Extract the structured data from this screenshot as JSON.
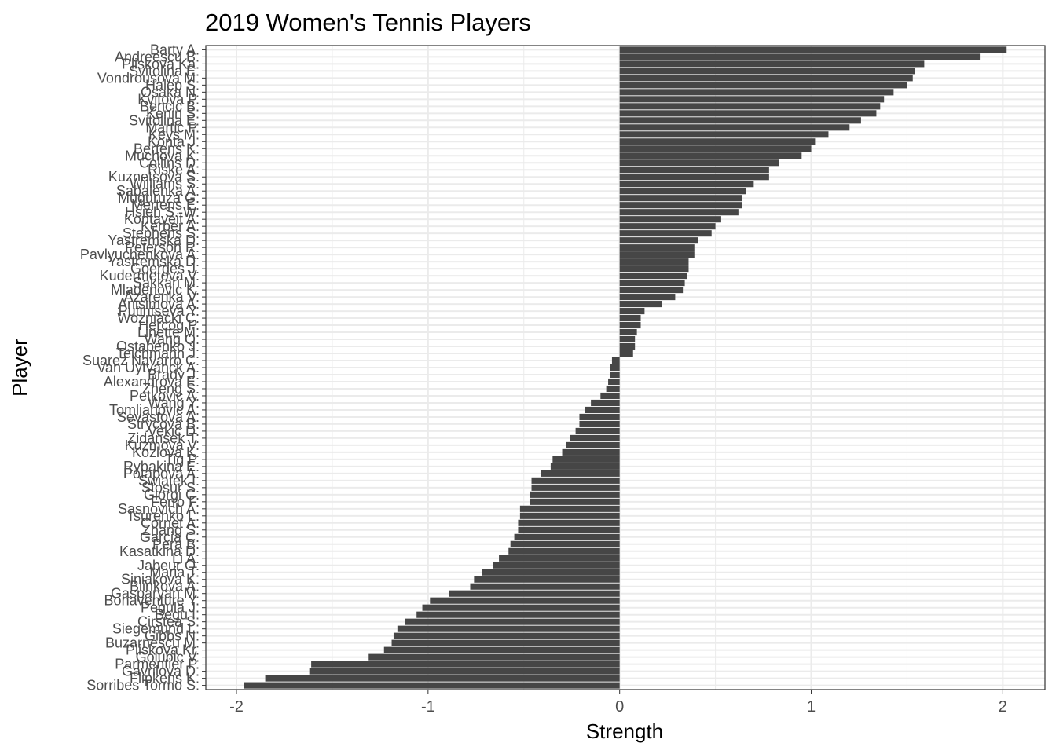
{
  "chart_data": {
    "type": "bar",
    "orientation": "horizontal",
    "title": "2019 Women's Tennis Players",
    "xlabel": "Strength",
    "ylabel": "Player",
    "xlim": [
      -2.16,
      2.22
    ],
    "x_ticks": [
      -2,
      -1,
      0,
      1,
      2
    ],
    "x_tick_labels": [
      "-2",
      "-1",
      "0",
      "1",
      "2"
    ],
    "grid": true,
    "colors": {
      "bar": "#464646",
      "grid": "#ebebeb",
      "panel_border": "#333333",
      "tick_label": "#4d4d4d",
      "background": "#ffffff"
    },
    "categories": [
      "Barty A.",
      "Andreescu B.",
      "Pliskova Ka.",
      "Svitolina E.",
      "Vondrousova M.",
      "Halep S.",
      "Osaka N.",
      "Kvitova P.",
      "Bencic B.",
      "Kenin S.",
      "Svitolina E.",
      "Martic P.",
      "Keys M.",
      "Konta J.",
      "Bertens K.",
      "Muchova K.",
      "Collins D.",
      "Riske A.",
      "Kuznetsova S.",
      "Williams S.",
      "Sabalenka A.",
      "Muguruza G.",
      "Mertens E.",
      "Hsieh S.-W.",
      "Kontaveit A.",
      "Kerber A.",
      "Stephens S.",
      "Yastremska D.",
      "Peterson R.",
      "Pavlyuchenkova A.",
      "Yastremska D.",
      "Goerges J.",
      "Kudermetova V.",
      "Sakkari M.",
      "Mladenovic K.",
      "Azarenka V.",
      "Anisimova A.",
      "Putintseva Y.",
      "Wozniacki C.",
      "Hercog P.",
      "Linette M.",
      "Wang Q.",
      "Ostapenko J.",
      "Teichmann J.",
      "Suarez Navarro C.",
      "Van Uytvanck A.",
      "Brady J.",
      "Alexandrova E.",
      "Zheng S.",
      "Petkovic A.",
      "Wang Y.",
      "Tomljanovic A.",
      "Sevastova A.",
      "Strycova B.",
      "Vekic D.",
      "Zidansek T.",
      "Kuzmova V.",
      "Kozlova K.",
      "Tig P.",
      "Rybakina E.",
      "Potapova A.",
      "Swiatek I.",
      "Stosur S.",
      "Giorgi C.",
      "Ferro F.",
      "Sasnovich A.",
      "Tsurenko L.",
      "Cornet A.",
      "Zhang S.",
      "Garcia C.",
      "Pera B.",
      "Kasatkina D.",
      "Li A.",
      "Jabeur O.",
      "Maria T.",
      "Siniakova K.",
      "Blinkova A.",
      "Gasparyan M.",
      "Bonaventure Y.",
      "Pegula J.",
      "Begu I.",
      "Cirstea S.",
      "Siegemund L.",
      "Gibbs N.",
      "Buzarnescu M.",
      "Pliskova Kr.",
      "Golubic V.",
      "Parmentier P.",
      "Gavrilova D.",
      "Flipkens K.",
      "Sorribes Tormo S."
    ],
    "values": [
      2.02,
      1.88,
      1.59,
      1.54,
      1.53,
      1.5,
      1.43,
      1.38,
      1.36,
      1.34,
      1.26,
      1.2,
      1.09,
      1.02,
      1.0,
      0.95,
      0.83,
      0.78,
      0.78,
      0.7,
      0.66,
      0.64,
      0.64,
      0.62,
      0.53,
      0.5,
      0.48,
      0.41,
      0.39,
      0.39,
      0.36,
      0.36,
      0.35,
      0.34,
      0.33,
      0.29,
      0.22,
      0.13,
      0.11,
      0.11,
      0.09,
      0.08,
      0.08,
      0.07,
      -0.04,
      -0.05,
      -0.05,
      -0.06,
      -0.07,
      -0.1,
      -0.15,
      -0.18,
      -0.21,
      -0.21,
      -0.23,
      -0.26,
      -0.28,
      -0.3,
      -0.35,
      -0.36,
      -0.41,
      -0.46,
      -0.46,
      -0.47,
      -0.47,
      -0.52,
      -0.52,
      -0.53,
      -0.53,
      -0.55,
      -0.57,
      -0.58,
      -0.63,
      -0.66,
      -0.72,
      -0.76,
      -0.78,
      -0.89,
      -0.99,
      -1.03,
      -1.06,
      -1.12,
      -1.16,
      -1.18,
      -1.19,
      -1.23,
      -1.31,
      -1.61,
      -1.62,
      -1.85,
      -1.96
    ]
  }
}
